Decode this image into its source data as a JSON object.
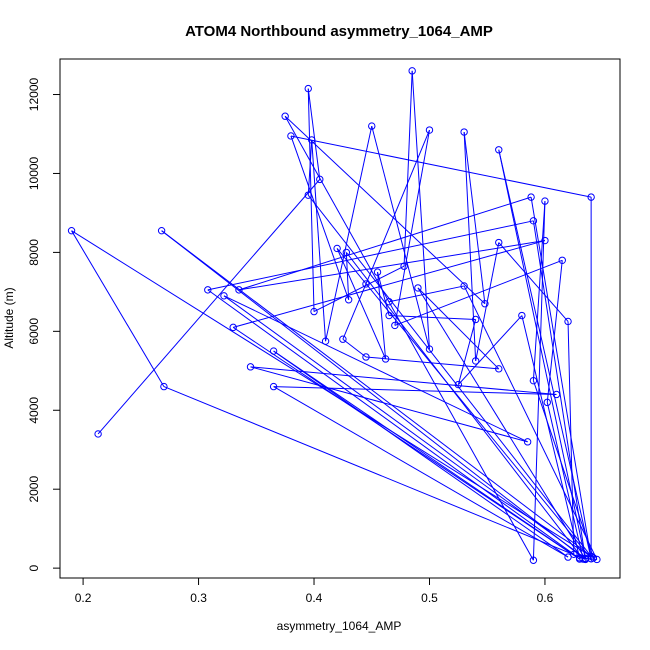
{
  "chart_data": {
    "type": "line",
    "title": "ATOM4 Northbound asymmetry_1064_AMP",
    "xlabel": "asymmetry_1064_AMP",
    "ylabel": "Altitude (m)",
    "xlim": [
      0.18,
      0.665
    ],
    "ylim": [
      -250,
      12900
    ],
    "xticks": [
      0.2,
      0.3,
      0.4,
      0.5,
      0.6
    ],
    "xtick_labels": [
      "0.2",
      "0.3",
      "0.4",
      "0.5",
      "0.6"
    ],
    "yticks": [
      0,
      2000,
      4000,
      6000,
      8000,
      10000,
      12000
    ],
    "ytick_labels": [
      "0",
      "2000",
      "4000",
      "6000",
      "8000",
      "10000",
      "12000"
    ],
    "grid": false,
    "legend": "none",
    "marker": "open-circle",
    "colors": {
      "series": "#0000ff",
      "axes": "#000000",
      "background": "#ffffff"
    },
    "series": [
      {
        "points": [
          [
            0.213,
            3400
          ],
          [
            0.405,
            9850
          ],
          [
            0.395,
            12150
          ],
          [
            0.4,
            6500
          ],
          [
            0.478,
            7650
          ],
          [
            0.485,
            12600
          ],
          [
            0.5,
            5550
          ],
          [
            0.45,
            11200
          ],
          [
            0.41,
            5750
          ],
          [
            0.398,
            10850
          ],
          [
            0.395,
            9450
          ],
          [
            0.64,
            300
          ],
          [
            0.19,
            8550
          ],
          [
            0.27,
            4600
          ],
          [
            0.635,
            220
          ],
          [
            0.268,
            8550
          ],
          [
            0.642,
            260
          ],
          [
            0.59,
            4750
          ],
          [
            0.6,
            9300
          ],
          [
            0.59,
            200
          ],
          [
            0.375,
            11450
          ],
          [
            0.548,
            6700
          ],
          [
            0.53,
            11050
          ],
          [
            0.54,
            5250
          ],
          [
            0.56,
            8250
          ],
          [
            0.62,
            6250
          ],
          [
            0.625,
            350
          ],
          [
            0.308,
            7050
          ],
          [
            0.59,
            8800
          ],
          [
            0.635,
            250
          ],
          [
            0.322,
            6900
          ],
          [
            0.585,
            3200
          ],
          [
            0.345,
            5100
          ],
          [
            0.61,
            4400
          ],
          [
            0.365,
            4600
          ],
          [
            0.62,
            280
          ],
          [
            0.365,
            5500
          ],
          [
            0.63,
            230
          ],
          [
            0.33,
            6100
          ],
          [
            0.6,
            8300
          ],
          [
            0.335,
            7050
          ],
          [
            0.588,
            9400
          ],
          [
            0.64,
            240
          ],
          [
            0.64,
            9400
          ],
          [
            0.38,
            10950
          ],
          [
            0.43,
            6800
          ],
          [
            0.428,
            8000
          ],
          [
            0.633,
            230
          ],
          [
            0.602,
            4200
          ],
          [
            0.615,
            7800
          ],
          [
            0.47,
            6150
          ],
          [
            0.5,
            11100
          ],
          [
            0.445,
            7200
          ],
          [
            0.425,
            5800
          ],
          [
            0.445,
            5350
          ],
          [
            0.56,
            5050
          ],
          [
            0.49,
            7100
          ],
          [
            0.635,
            230
          ],
          [
            0.56,
            10600
          ],
          [
            0.64,
            240
          ],
          [
            0.42,
            8100
          ],
          [
            0.462,
            5300
          ],
          [
            0.455,
            7500
          ],
          [
            0.465,
            6400
          ],
          [
            0.54,
            6300
          ],
          [
            0.525,
            4650
          ],
          [
            0.58,
            6400
          ],
          [
            0.63,
            260
          ],
          [
            0.645,
            220
          ],
          [
            0.53,
            7150
          ],
          [
            0.465,
            6750
          ]
        ]
      }
    ]
  }
}
